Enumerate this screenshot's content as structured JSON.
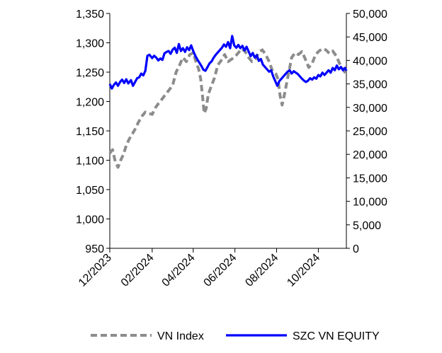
{
  "chart_data": {
    "type": "line",
    "x_ticks": [
      "12/2023",
      "02/2024",
      "04/2024",
      "06/2024",
      "08/2024",
      "10/2024"
    ],
    "y_left": {
      "ylim": [
        950,
        1350
      ],
      "ticks": [
        "950",
        "1,000",
        "1,050",
        "1,100",
        "1,150",
        "1,200",
        "1,250",
        "1,300",
        "1,350"
      ]
    },
    "y_right": {
      "ylim": [
        0,
        50000
      ],
      "ticks": [
        "0",
        "5,000",
        "10,000",
        "15,000",
        "20,000",
        "25,000",
        "30,000",
        "35,000",
        "40,000",
        "45,000",
        "50,000"
      ]
    },
    "grid": false,
    "legend_position": "bottom",
    "series": [
      {
        "name": "VN Index",
        "axis": "left",
        "color": "#8c8c8c",
        "style": "dashed",
        "points": [
          [
            "2023-12-01",
            1112
          ],
          [
            "2023-12-05",
            1118
          ],
          [
            "2023-12-09",
            1098
          ],
          [
            "2023-12-13",
            1088
          ],
          [
            "2023-12-17",
            1100
          ],
          [
            "2023-12-21",
            1110
          ],
          [
            "2023-12-25",
            1125
          ],
          [
            "2023-12-29",
            1135
          ],
          [
            "2024-01-03",
            1145
          ],
          [
            "2024-01-08",
            1155
          ],
          [
            "2024-01-12",
            1165
          ],
          [
            "2024-01-17",
            1175
          ],
          [
            "2024-01-22",
            1182
          ],
          [
            "2024-01-27",
            1180
          ],
          [
            "2024-02-01",
            1178
          ],
          [
            "2024-02-06",
            1190
          ],
          [
            "2024-02-11",
            1198
          ],
          [
            "2024-02-16",
            1205
          ],
          [
            "2024-02-21",
            1213
          ],
          [
            "2024-02-26",
            1220
          ],
          [
            "2024-03-02",
            1228
          ],
          [
            "2024-03-07",
            1250
          ],
          [
            "2024-03-12",
            1262
          ],
          [
            "2024-03-17",
            1275
          ],
          [
            "2024-03-22",
            1268
          ],
          [
            "2024-03-27",
            1280
          ],
          [
            "2024-04-01",
            1283
          ],
          [
            "2024-04-05",
            1268
          ],
          [
            "2024-04-09",
            1255
          ],
          [
            "2024-04-12",
            1238
          ],
          [
            "2024-04-15",
            1205
          ],
          [
            "2024-04-17",
            1180
          ],
          [
            "2024-04-20",
            1188
          ],
          [
            "2024-04-23",
            1212
          ],
          [
            "2024-04-27",
            1225
          ],
          [
            "2024-05-02",
            1240
          ],
          [
            "2024-05-07",
            1262
          ],
          [
            "2024-05-12",
            1270
          ],
          [
            "2024-05-17",
            1280
          ],
          [
            "2024-05-22",
            1268
          ],
          [
            "2024-05-27",
            1272
          ],
          [
            "2024-06-01",
            1276
          ],
          [
            "2024-06-06",
            1283
          ],
          [
            "2024-06-11",
            1290
          ],
          [
            "2024-06-16",
            1285
          ],
          [
            "2024-06-21",
            1275
          ],
          [
            "2024-06-26",
            1268
          ],
          [
            "2024-07-01",
            1272
          ],
          [
            "2024-07-06",
            1284
          ],
          [
            "2024-07-11",
            1288
          ],
          [
            "2024-07-16",
            1280
          ],
          [
            "2024-07-21",
            1268
          ],
          [
            "2024-07-26",
            1252
          ],
          [
            "2024-07-31",
            1247
          ],
          [
            "2024-08-03",
            1238
          ],
          [
            "2024-08-06",
            1210
          ],
          [
            "2024-08-09",
            1194
          ],
          [
            "2024-08-13",
            1215
          ],
          [
            "2024-08-18",
            1245
          ],
          [
            "2024-08-23",
            1275
          ],
          [
            "2024-08-28",
            1283
          ],
          [
            "2024-09-02",
            1280
          ],
          [
            "2024-09-07",
            1285
          ],
          [
            "2024-09-12",
            1272
          ],
          [
            "2024-09-17",
            1258
          ],
          [
            "2024-09-22",
            1265
          ],
          [
            "2024-09-27",
            1280
          ],
          [
            "2024-10-02",
            1286
          ],
          [
            "2024-10-07",
            1290
          ],
          [
            "2024-10-12",
            1288
          ],
          [
            "2024-10-17",
            1282
          ],
          [
            "2024-10-22",
            1286
          ],
          [
            "2024-10-27",
            1278
          ],
          [
            "2024-11-01",
            1265
          ],
          [
            "2024-11-06",
            1255
          ],
          [
            "2024-11-10",
            1248
          ]
        ]
      },
      {
        "name": "SZC VN EQUITY",
        "axis": "right",
        "color": "#0000ff",
        "style": "solid",
        "points": [
          [
            "2023-12-01",
            35000
          ],
          [
            "2023-12-04",
            34000
          ],
          [
            "2023-12-07",
            34800
          ],
          [
            "2023-12-10",
            35300
          ],
          [
            "2023-12-13",
            34600
          ],
          [
            "2023-12-16",
            35400
          ],
          [
            "2023-12-19",
            35900
          ],
          [
            "2023-12-22",
            35200
          ],
          [
            "2023-12-25",
            36000
          ],
          [
            "2023-12-28",
            35100
          ],
          [
            "2024-01-01",
            35800
          ],
          [
            "2024-01-04",
            34600
          ],
          [
            "2024-01-07",
            35400
          ],
          [
            "2024-01-10",
            36200
          ],
          [
            "2024-01-13",
            36400
          ],
          [
            "2024-01-16",
            37200
          ],
          [
            "2024-01-19",
            36800
          ],
          [
            "2024-01-22",
            37800
          ],
          [
            "2024-01-25",
            41000
          ],
          [
            "2024-01-28",
            41200
          ],
          [
            "2024-02-01",
            40500
          ],
          [
            "2024-02-04",
            41000
          ],
          [
            "2024-02-07",
            40600
          ],
          [
            "2024-02-10",
            40000
          ],
          [
            "2024-02-13",
            40400
          ],
          [
            "2024-02-16",
            40100
          ],
          [
            "2024-02-19",
            41500
          ],
          [
            "2024-02-22",
            41800
          ],
          [
            "2024-02-25",
            42000
          ],
          [
            "2024-02-28",
            41400
          ],
          [
            "2024-03-02",
            42300
          ],
          [
            "2024-03-05",
            42700
          ],
          [
            "2024-03-08",
            41600
          ],
          [
            "2024-03-11",
            43500
          ],
          [
            "2024-03-14",
            42000
          ],
          [
            "2024-03-17",
            42600
          ],
          [
            "2024-03-20",
            41800
          ],
          [
            "2024-03-23",
            42800
          ],
          [
            "2024-03-26",
            42200
          ],
          [
            "2024-03-29",
            43200
          ],
          [
            "2024-04-01",
            42000
          ],
          [
            "2024-04-04",
            41000
          ],
          [
            "2024-04-07",
            40200
          ],
          [
            "2024-04-10",
            39500
          ],
          [
            "2024-04-13",
            38800
          ],
          [
            "2024-04-16",
            38000
          ],
          [
            "2024-04-19",
            37800
          ],
          [
            "2024-04-22",
            38600
          ],
          [
            "2024-04-25",
            39400
          ],
          [
            "2024-04-28",
            39800
          ],
          [
            "2024-05-01",
            40600
          ],
          [
            "2024-05-04",
            41200
          ],
          [
            "2024-05-07",
            41700
          ],
          [
            "2024-05-10",
            42200
          ],
          [
            "2024-05-13",
            42700
          ],
          [
            "2024-05-16",
            43400
          ],
          [
            "2024-05-19",
            42900
          ],
          [
            "2024-05-22",
            43900
          ],
          [
            "2024-05-25",
            42600
          ],
          [
            "2024-05-28",
            45200
          ],
          [
            "2024-05-31",
            43200
          ],
          [
            "2024-06-03",
            42700
          ],
          [
            "2024-06-06",
            43300
          ],
          [
            "2024-06-09",
            42600
          ],
          [
            "2024-06-12",
            43100
          ],
          [
            "2024-06-15",
            42100
          ],
          [
            "2024-06-18",
            42900
          ],
          [
            "2024-06-21",
            41900
          ],
          [
            "2024-06-24",
            40900
          ],
          [
            "2024-06-27",
            41600
          ],
          [
            "2024-06-30",
            40600
          ],
          [
            "2024-07-03",
            41100
          ],
          [
            "2024-07-06",
            39900
          ],
          [
            "2024-07-09",
            40300
          ],
          [
            "2024-07-12",
            39100
          ],
          [
            "2024-07-15",
            38600
          ],
          [
            "2024-07-18",
            38100
          ],
          [
            "2024-07-21",
            37600
          ],
          [
            "2024-07-24",
            37900
          ],
          [
            "2024-07-27",
            36600
          ],
          [
            "2024-07-30",
            35600
          ],
          [
            "2024-08-02",
            34600
          ],
          [
            "2024-08-05",
            35600
          ],
          [
            "2024-08-08",
            36100
          ],
          [
            "2024-08-11",
            36600
          ],
          [
            "2024-08-14",
            37100
          ],
          [
            "2024-08-17",
            37600
          ],
          [
            "2024-08-20",
            37900
          ],
          [
            "2024-08-23",
            37200
          ],
          [
            "2024-08-26",
            37700
          ],
          [
            "2024-08-29",
            37400
          ],
          [
            "2024-09-01",
            37100
          ],
          [
            "2024-09-04",
            36600
          ],
          [
            "2024-09-07",
            36100
          ],
          [
            "2024-09-10",
            35700
          ],
          [
            "2024-09-13",
            35400
          ],
          [
            "2024-09-16",
            35700
          ],
          [
            "2024-09-19",
            36200
          ],
          [
            "2024-09-22",
            35900
          ],
          [
            "2024-09-25",
            36400
          ],
          [
            "2024-09-28",
            36100
          ],
          [
            "2024-10-01",
            36900
          ],
          [
            "2024-10-04",
            36600
          ],
          [
            "2024-10-07",
            37400
          ],
          [
            "2024-10-10",
            36900
          ],
          [
            "2024-10-13",
            37400
          ],
          [
            "2024-10-16",
            37900
          ],
          [
            "2024-10-19",
            37400
          ],
          [
            "2024-10-22",
            38400
          ],
          [
            "2024-10-25",
            37900
          ],
          [
            "2024-10-28",
            38900
          ],
          [
            "2024-10-31",
            38100
          ],
          [
            "2024-11-03",
            38600
          ],
          [
            "2024-11-06",
            37900
          ],
          [
            "2024-11-09",
            38400
          ],
          [
            "2024-11-11",
            37800
          ]
        ]
      }
    ]
  }
}
